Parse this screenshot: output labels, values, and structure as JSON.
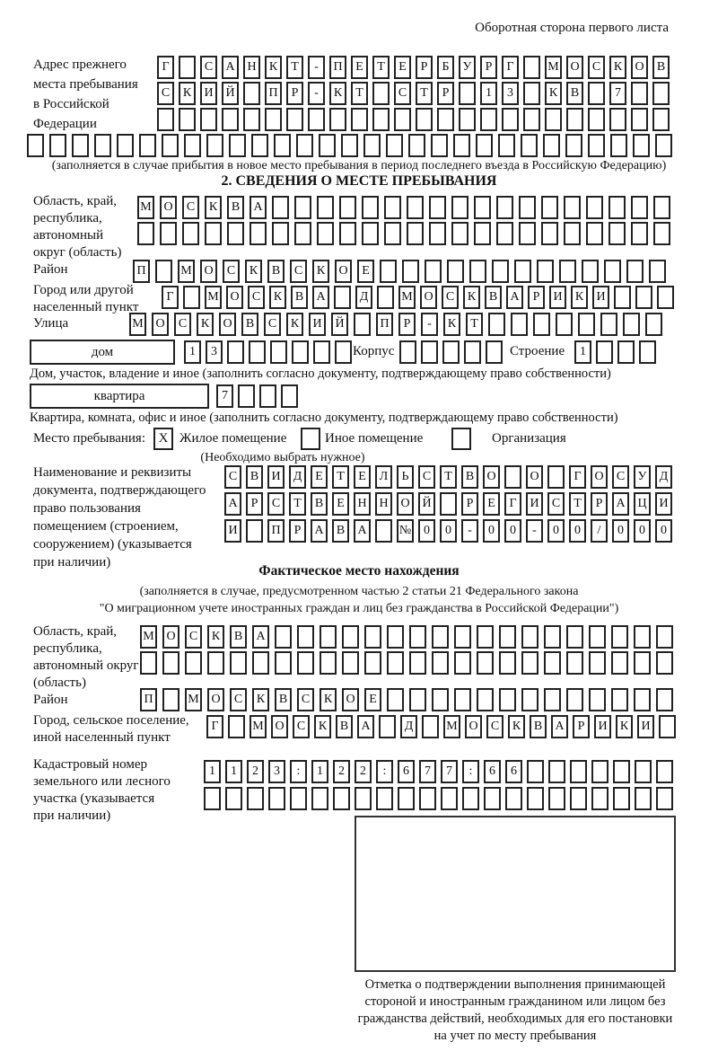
{
  "page": {
    "header_note": "Оборотная сторона первого листа"
  },
  "prev_address": {
    "label": "Адрес прежнего\nместа пребывания\nв Российской\nФедерации",
    "row1": {
      "text": "Г САНКТ-ПЕТЕРБУРГ МОСКОВ",
      "len": 24
    },
    "row2": {
      "text": "СКИЙ ПР-КТ СТР 13 КВ 7",
      "len": 24
    },
    "row3": {
      "text": "",
      "len": 24
    },
    "row4": {
      "text": "",
      "len": 29
    },
    "note": "(заполняется в случае прибытия в новое место пребывания в период последнего въезда в Российскую Федерацию)"
  },
  "section2": {
    "title": "2. СВЕДЕНИЯ О МЕСТЕ ПРЕБЫВАНИЯ",
    "region": {
      "label": "Область, край,\nреспублика,\nавтономный\nокруг (область)",
      "row1": {
        "text": "МОСКВА",
        "len": 24
      },
      "row2": {
        "text": "",
        "len": 24
      }
    },
    "district": {
      "label": "Район",
      "row": {
        "text": "П МОСКВСКОЕ",
        "len": 24
      }
    },
    "city": {
      "label": "Город или другой\nнаселенный пункт",
      "row": {
        "text": "Г МОСКВА Д МОСКВАРИКИ",
        "len": 24
      }
    },
    "street": {
      "label": "Улица",
      "row": {
        "text": "МОСКОВСКИЙ ПР-КТ",
        "len": 24
      }
    },
    "house": {
      "box_label": "дом",
      "digits": {
        "text": "13",
        "len": 8
      },
      "korpus_label": "Корпус",
      "korpus": {
        "text": "",
        "len": 5
      },
      "stroenie_label": "Строение",
      "stroenie": {
        "text": "1",
        "len": 4
      },
      "note": "Дом, участок, владение и иное (заполнить согласно документу, подтверждающему право собственности)"
    },
    "apartment": {
      "box_label": "квартира",
      "digits": {
        "text": "7",
        "len": 4
      },
      "note": "Квартира, комната, офис и иное (заполнить согласно документу, подтверждающему право собственности)"
    },
    "place_type": {
      "label": "Место пребывания:",
      "checked_mark": "X",
      "options": [
        "Жилое помещение",
        "Иное помещение",
        "Организация"
      ],
      "note": "(Необходимо выбрать нужное)"
    },
    "doc": {
      "label": "Наименование и реквизиты\nдокумента, подтверждающего\nправо пользования\nпомещением (строением,\nсооружением) (указывается\nпри наличии)",
      "row1": {
        "text": "СВИДЕТЕЛЬСТВО О ГОСУД",
        "len": 21
      },
      "row2": {
        "text": "АРСТВЕННОЙ РЕГИСТРАЦИ",
        "len": 21
      },
      "row3": {
        "text": "И ПРАВА №00-00-00/000",
        "len": 21
      }
    }
  },
  "actual_location": {
    "title": "Фактическое место нахождения",
    "note1": "(заполняется в случае, предусмотренном частью 2 статьи 21 Федерального закона",
    "note2": "\"О миграционном учете иностранных граждан и лиц без гражданства в Российской Федерации\")",
    "region": {
      "label": "Область, край,\nреспублика,\nавтономный округ\n(область)",
      "row1": {
        "text": "МОСКВА",
        "len": 24
      },
      "row2": {
        "text": "",
        "len": 24
      }
    },
    "district": {
      "label": "Район",
      "row": {
        "text": "П МОСКВСКОЕ",
        "len": 24
      }
    },
    "city": {
      "label": "Город, сельское поселение,\nиной населенный пункт",
      "row": {
        "text": "Г МОСКВА Д МОСКВАРИКИ",
        "len": 22
      }
    },
    "cadastre": {
      "label": "Кадастровый номер\nземельного или лесного\nучастка (указывается\nпри наличии)",
      "row1": {
        "text": "1123:122:677:66",
        "len": 22
      },
      "row2": {
        "text": "",
        "len": 22
      }
    },
    "stamp_note": "Отметка о подтверждении выполнения принимающей\nстороной и иностранным гражданином или лицом без\nгражданства действий, необходимых для его постановки\nна учет по месту пребывания"
  }
}
